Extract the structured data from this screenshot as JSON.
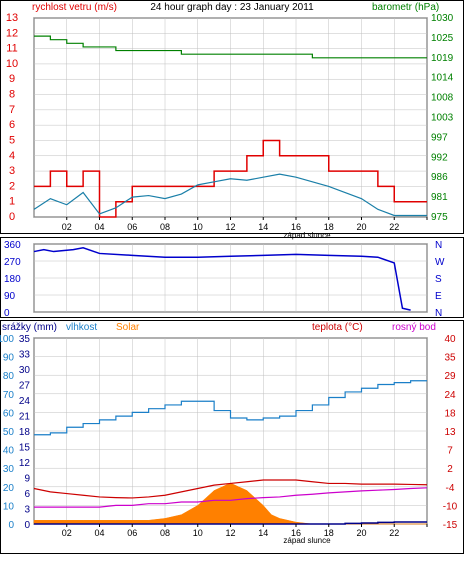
{
  "colors": {
    "wind": "#e00000",
    "gust": "#e00000",
    "wind_avg": "#1a7fa8",
    "pressure": "#008000",
    "direction": "#0000cc",
    "temperature": "#cc0000",
    "humidity": "#1a7fc8",
    "dewpoint": "#cc00cc",
    "solar": "#ff8000",
    "rain": "#000088",
    "grid": "#c0c0c0",
    "axis": "#000000"
  },
  "chart_data": [
    {
      "type": "line",
      "title": "24 hour graph day : 23 January 2011",
      "ylabel_left": "rychlost vetru (m/s)",
      "ylabel_right": "barometr (hPa)",
      "xlabel": "západ slunce",
      "xticks": [
        "02",
        "04",
        "06",
        "08",
        "10",
        "12",
        "14",
        "16",
        "18",
        "20",
        "22",
        ""
      ],
      "xlim": [
        0,
        24
      ],
      "ylim_left": [
        0,
        13
      ],
      "yticks_left": [
        0,
        1,
        2,
        3,
        4,
        5,
        6,
        7,
        8,
        9,
        10,
        11,
        12,
        13
      ],
      "yticks_right": [
        "975",
        "981",
        "986",
        "992",
        "997",
        "1003",
        "1008",
        "1014",
        "1019",
        "1025",
        "1030"
      ],
      "ylim_right": [
        975,
        1030
      ],
      "series": [
        {
          "key": "gust",
          "x": [
            0,
            1,
            2,
            3,
            4,
            5,
            6,
            7,
            8,
            9,
            10,
            11,
            12,
            13,
            14,
            15,
            16,
            17,
            18,
            19,
            20,
            21,
            22,
            23,
            24
          ],
          "values": [
            2,
            3,
            2,
            3,
            0,
            1,
            2,
            2,
            2,
            2,
            2,
            3,
            3,
            4,
            5,
            4,
            4,
            4,
            3,
            3,
            3,
            2,
            1,
            1,
            1
          ]
        },
        {
          "key": "wind_avg",
          "x": [
            0,
            1,
            2,
            3,
            4,
            5,
            6,
            7,
            8,
            9,
            10,
            11,
            12,
            13,
            14,
            15,
            16,
            17,
            18,
            19,
            20,
            21,
            22,
            23,
            24
          ],
          "values": [
            0.5,
            1.2,
            0.8,
            1.6,
            0.2,
            0.6,
            1.3,
            1.4,
            1.2,
            1.5,
            2.1,
            2.3,
            2.5,
            2.4,
            2.6,
            2.8,
            2.6,
            2.3,
            2.0,
            1.6,
            1.2,
            0.5,
            0.1,
            0.1,
            0.1
          ]
        },
        {
          "key": "pressure",
          "x": [
            0,
            1,
            2,
            3,
            4,
            5,
            6,
            7,
            8,
            9,
            10,
            11,
            12,
            13,
            14,
            15,
            16,
            17,
            18,
            19,
            20,
            21,
            22,
            23,
            24
          ],
          "values": [
            1025,
            1024,
            1023,
            1022,
            1022,
            1021,
            1021,
            1021,
            1021,
            1020,
            1020,
            1020,
            1020,
            1020,
            1020,
            1020,
            1020,
            1019,
            1019,
            1019,
            1019,
            1019,
            1019,
            1019,
            1019
          ]
        }
      ]
    },
    {
      "type": "line",
      "ylabel_left_ticks": [
        "360",
        "270",
        "180",
        "90",
        "0"
      ],
      "ylabel_right_ticks": [
        "N",
        "W",
        "S",
        "E",
        "N"
      ],
      "ylim": [
        0,
        360
      ],
      "xlim": [
        0,
        24
      ],
      "series": [
        {
          "key": "direction",
          "x": [
            0,
            0.6,
            1.2,
            2.4,
            3.0,
            4,
            6,
            8,
            10,
            12,
            14,
            16,
            18,
            20,
            21,
            22,
            22.5,
            23
          ],
          "values": [
            320,
            330,
            320,
            330,
            340,
            310,
            300,
            290,
            290,
            295,
            300,
            305,
            300,
            295,
            290,
            260,
            20,
            10
          ]
        }
      ]
    },
    {
      "type": "line",
      "left_axis_labels": {
        "rain": "srážky (mm)",
        "humidity": "vlhkost",
        "solar": "Solar"
      },
      "right_axis_labels": {
        "temperature": "teplota (°C)",
        "dewpoint": "rosný bod"
      },
      "xlabel": "západ slunce",
      "xticks": [
        "02",
        "04",
        "06",
        "08",
        "10",
        "12",
        "14",
        "16",
        "18",
        "20",
        "22",
        ""
      ],
      "xlim": [
        0,
        24
      ],
      "yticks_left_humidity": [
        0,
        10,
        20,
        30,
        40,
        50,
        60,
        70,
        80,
        90,
        100
      ],
      "yticks_left_rain": [
        0,
        3,
        6,
        9,
        12,
        15,
        18,
        21,
        24,
        27,
        30,
        33,
        35
      ],
      "ylim_right": [
        -15,
        40
      ],
      "yticks_right": [
        -15,
        -10,
        -4,
        2,
        7,
        13,
        18,
        24,
        29,
        35,
        40
      ],
      "series": [
        {
          "key": "humidity",
          "x": [
            0,
            1,
            2,
            3,
            4,
            5,
            6,
            7,
            8,
            9,
            10,
            11,
            12,
            13,
            14,
            15,
            16,
            17,
            18,
            19,
            20,
            21,
            22,
            23,
            24
          ],
          "values": [
            48,
            49,
            52,
            54,
            56,
            58,
            60,
            62,
            64,
            66,
            66,
            61,
            57,
            56,
            57,
            58,
            61,
            64,
            68,
            71,
            73,
            75,
            76,
            77,
            77
          ]
        },
        {
          "key": "temperature",
          "x": [
            0,
            1,
            2,
            3,
            4,
            5,
            6,
            7,
            8,
            9,
            10,
            11,
            12,
            13,
            14,
            15,
            16,
            17,
            18,
            19,
            20,
            21,
            22,
            23,
            24
          ],
          "values": [
            -4.5,
            -5.5,
            -6.0,
            -6.5,
            -7.0,
            -7.2,
            -7.3,
            -7.0,
            -6.5,
            -5.5,
            -4.5,
            -3.5,
            -3.0,
            -2.5,
            -2.0,
            -2.0,
            -2.0,
            -2.5,
            -3.0,
            -3.0,
            -3.2,
            -3.2,
            -3.2,
            -3.3,
            -3.4
          ]
        },
        {
          "key": "dewpoint",
          "x": [
            0,
            1,
            2,
            3,
            4,
            5,
            6,
            7,
            8,
            9,
            10,
            11,
            12,
            13,
            14,
            15,
            16,
            17,
            18,
            19,
            20,
            21,
            22,
            23,
            24
          ],
          "values": [
            -10.0,
            -10.0,
            -10.0,
            -10.0,
            -10.0,
            -9.5,
            -9.5,
            -9.0,
            -9.0,
            -8.5,
            -8.5,
            -8.0,
            -8.0,
            -7.5,
            -7.2,
            -7.0,
            -6.5,
            -6.2,
            -5.8,
            -5.5,
            -5.2,
            -5.0,
            -4.8,
            -4.5,
            -4.3
          ]
        },
        {
          "key": "solar",
          "x": [
            0,
            1,
            2,
            3,
            4,
            5,
            6,
            7,
            8,
            9,
            10,
            10.5,
            11,
            11.5,
            12,
            12.5,
            13,
            13.5,
            14,
            14.5,
            15,
            16,
            17,
            18,
            20,
            22,
            24
          ],
          "values": [
            2,
            2,
            2,
            2,
            2,
            2,
            2,
            2,
            3,
            5,
            10,
            14,
            18,
            20,
            22,
            20,
            18,
            14,
            10,
            5,
            3,
            1,
            0,
            0,
            0,
            0,
            0
          ]
        },
        {
          "key": "rain",
          "x": [
            0,
            18,
            19,
            20,
            21,
            22,
            23,
            24
          ],
          "values": [
            0,
            0,
            0.3,
            0.5,
            0.8,
            1.0,
            1.0,
            1.0
          ]
        }
      ]
    }
  ]
}
